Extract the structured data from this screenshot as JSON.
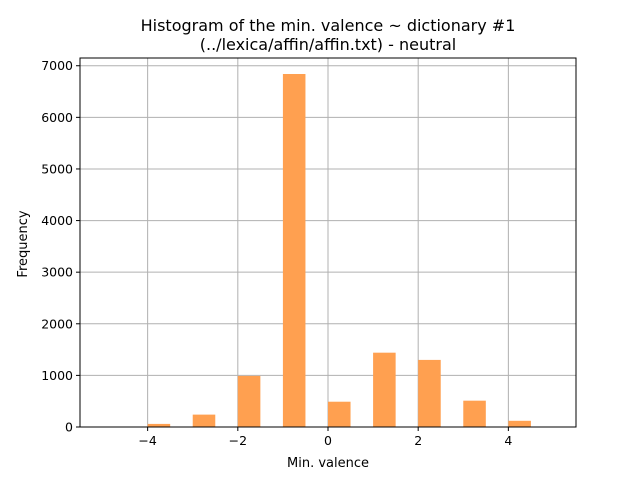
{
  "chart_data": {
    "type": "bar",
    "title_line1": "Histogram of the min. valence ~ dictionary #1",
    "title_line2": "(../lexica/affin/affin.txt) - neutral",
    "xlabel": "Min. valence",
    "ylabel": "Frequency",
    "xlim": [
      -5.5,
      5.5
    ],
    "ylim": [
      0,
      7150
    ],
    "grid": true,
    "bar_color": "#ffa050",
    "xticks": [
      -4,
      -2,
      0,
      2,
      4
    ],
    "xtick_labels": [
      "−4",
      "−2",
      "0",
      "2",
      "4"
    ],
    "yticks": [
      0,
      1000,
      2000,
      3000,
      4000,
      5000,
      6000,
      7000
    ],
    "ytick_labels": [
      "0",
      "1000",
      "2000",
      "3000",
      "4000",
      "5000",
      "6000",
      "7000"
    ],
    "bars": [
      {
        "x0": -4.0,
        "x1": -3.5,
        "value": 60
      },
      {
        "x0": -3.0,
        "x1": -2.5,
        "value": 240
      },
      {
        "x0": -2.0,
        "x1": -1.5,
        "value": 990
      },
      {
        "x0": -1.0,
        "x1": -0.5,
        "value": 6840
      },
      {
        "x0": 0.0,
        "x1": 0.5,
        "value": 490
      },
      {
        "x0": 1.0,
        "x1": 1.5,
        "value": 1440
      },
      {
        "x0": 2.0,
        "x1": 2.5,
        "value": 1300
      },
      {
        "x0": 3.0,
        "x1": 3.5,
        "value": 510
      },
      {
        "x0": 4.0,
        "x1": 4.5,
        "value": 120
      }
    ]
  }
}
